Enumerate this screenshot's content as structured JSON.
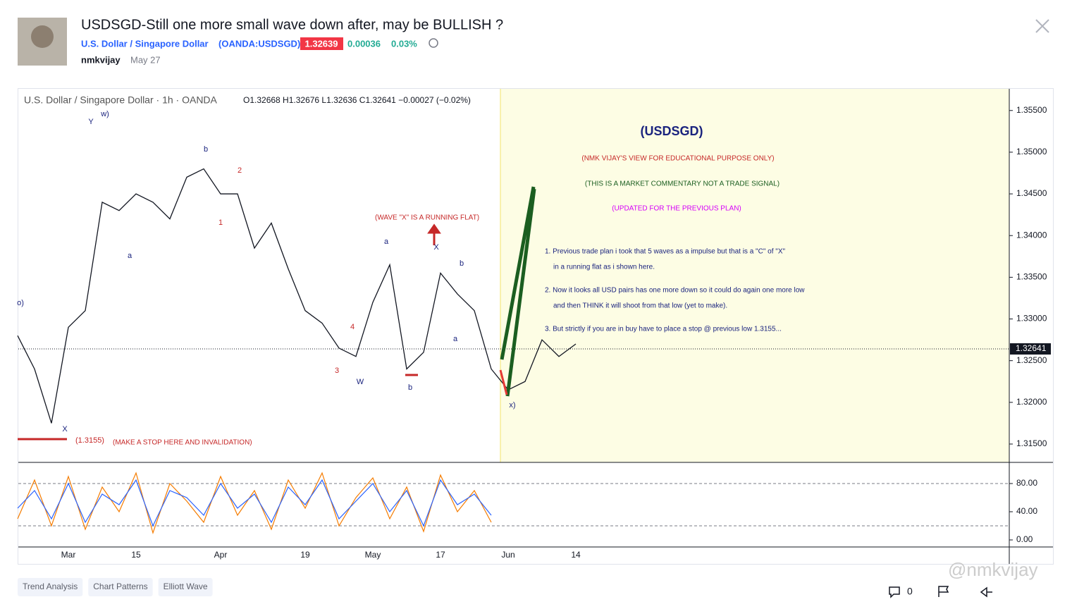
{
  "header": {
    "title": "USDSGD-Still one more small wave down after, may be BULLISH ?",
    "symbol_name": "U.S. Dollar / Singapore Dollar",
    "symbol_code": "(OANDA:USDSGD)",
    "price": "1.32639",
    "change": "0.00036",
    "change_pct": "0.03%",
    "author": "nmkvijay",
    "date": "May 27"
  },
  "chart_legend": {
    "symbol": "U.S. Dollar / Singapore Dollar · 1h · OANDA",
    "ohlc": "O1.32668 H1.32676 L1.32636 C1.32641 −0.00027 (−0.02%)"
  },
  "annotations": {
    "note_title": "(USDSGD)",
    "disclaimer_1": "(NMK VIJAY'S VIEW FOR EDUCATIONAL PURPOSE ONLY)",
    "disclaimer_2": "(THIS IS A MARKET COMMENTARY NOT A TRADE SIGNAL)",
    "disclaimer_3": "(UPDATED FOR THE PREVIOUS PLAN)",
    "points": [
      "1. Previous trade plan i took that 5 waves as a impulse but that is a \"C\" of \"X\"",
      "in a running flat as i shown here.",
      "2. Now it looks all USD pairs has one more down so it could do again one more low",
      "and then THINK it will shoot from that low (yet to make).",
      "3. But strictly if you are in buy have to place a stop @ previous low 1.3155..."
    ],
    "running_flat": "(WAVE \"X\" IS A RUNNING FLAT)",
    "stop_level": "(1.3155)",
    "stop_note": "(MAKE A STOP HERE AND INVALIDATION)",
    "waves": [
      "Y",
      "w)",
      "b",
      "2",
      "1",
      "a",
      "X",
      "a",
      "X",
      "b",
      "a",
      "4",
      "3",
      "W",
      "b",
      "x)",
      "o)"
    ]
  },
  "chart_data": [
    {
      "type": "line",
      "color": "#131722",
      "categories": [
        null,
        null,
        null,
        "Mar",
        null,
        null,
        null,
        "15",
        null,
        null,
        null,
        null,
        "Apr",
        null,
        null,
        null,
        null,
        "19",
        null,
        null,
        null,
        "May",
        null,
        null,
        null,
        "17",
        null,
        null,
        null,
        "Jun",
        null,
        null,
        null,
        "14",
        null,
        null,
        null,
        null,
        null,
        null,
        null,
        null,
        null,
        null,
        null,
        null,
        null,
        null,
        null,
        null,
        null,
        null,
        null,
        null,
        null,
        null,
        null,
        null,
        null
      ],
      "values": [
        1.328,
        1.324,
        1.3175,
        1.329,
        1.331,
        1.344,
        1.343,
        1.345,
        1.344,
        1.342,
        1.347,
        1.348,
        1.345,
        1.345,
        1.3385,
        1.3415,
        1.336,
        1.331,
        1.3295,
        1.3265,
        1.3255,
        1.332,
        1.3365,
        1.324,
        1.326,
        1.3355,
        1.333,
        1.331,
        1.324,
        1.3215,
        1.3225,
        1.3275,
        1.3255,
        1.327,
        null,
        null,
        null,
        null,
        null,
        null,
        null,
        null,
        null,
        null,
        null,
        null,
        null,
        null,
        null,
        null,
        null,
        null,
        null,
        null,
        null,
        null,
        null,
        null,
        null
      ],
      "ylim": [
        1.3128,
        1.3576
      ],
      "yticks": [
        {
          "value": 1.315,
          "label": "1.31500"
        },
        {
          "value": 1.32,
          "label": "1.32000"
        },
        {
          "value": 1.325,
          "label": "1.32500"
        },
        {
          "value": 1.33,
          "label": "1.33000"
        },
        {
          "value": 1.335,
          "label": "1.33500"
        },
        {
          "value": 1.34,
          "label": "1.34000"
        },
        {
          "value": 1.345,
          "label": "1.34500"
        },
        {
          "value": 1.35,
          "label": "1.35000"
        },
        {
          "value": 1.355,
          "label": "1.35500"
        }
      ],
      "last_price": 1.32641
    },
    {
      "type": "line",
      "series": [
        {
          "color": "#f57c00",
          "values": [
            30,
            85,
            20,
            90,
            15,
            75,
            40,
            95,
            10,
            80,
            55,
            25,
            90,
            35,
            70,
            15,
            85,
            45,
            95,
            20,
            60,
            88,
            30,
            75,
            12,
            92,
            40,
            70,
            25,
            null,
            null,
            null,
            null,
            null,
            null,
            null,
            null,
            null,
            null,
            null,
            null,
            null,
            null,
            null,
            null,
            null,
            null,
            null,
            null,
            null,
            null,
            null,
            null,
            null,
            null,
            null,
            null,
            null,
            null
          ]
        },
        {
          "color": "#2962ff",
          "values": [
            45,
            70,
            30,
            80,
            25,
            65,
            50,
            85,
            20,
            70,
            60,
            35,
            80,
            45,
            65,
            25,
            75,
            50,
            85,
            30,
            55,
            80,
            40,
            70,
            20,
            85,
            50,
            65,
            35,
            null,
            null,
            null,
            null,
            null,
            null,
            null,
            null,
            null,
            null,
            null,
            null,
            null,
            null,
            null,
            null,
            null,
            null,
            null,
            null,
            null,
            null,
            null,
            null,
            null,
            null,
            null,
            null,
            null,
            null
          ]
        }
      ],
      "ylim": [
        -10,
        110
      ],
      "yticks": [
        {
          "value": 0,
          "label": "0.00"
        },
        {
          "value": 40,
          "label": "40.00"
        },
        {
          "value": 80,
          "label": "80.00"
        }
      ],
      "band_lines": [
        20,
        80
      ]
    }
  ],
  "tags": [
    "Trend Analysis",
    "Chart Patterns",
    "Elliott Wave"
  ],
  "comments": "0",
  "watermark": "@nmkvijay"
}
